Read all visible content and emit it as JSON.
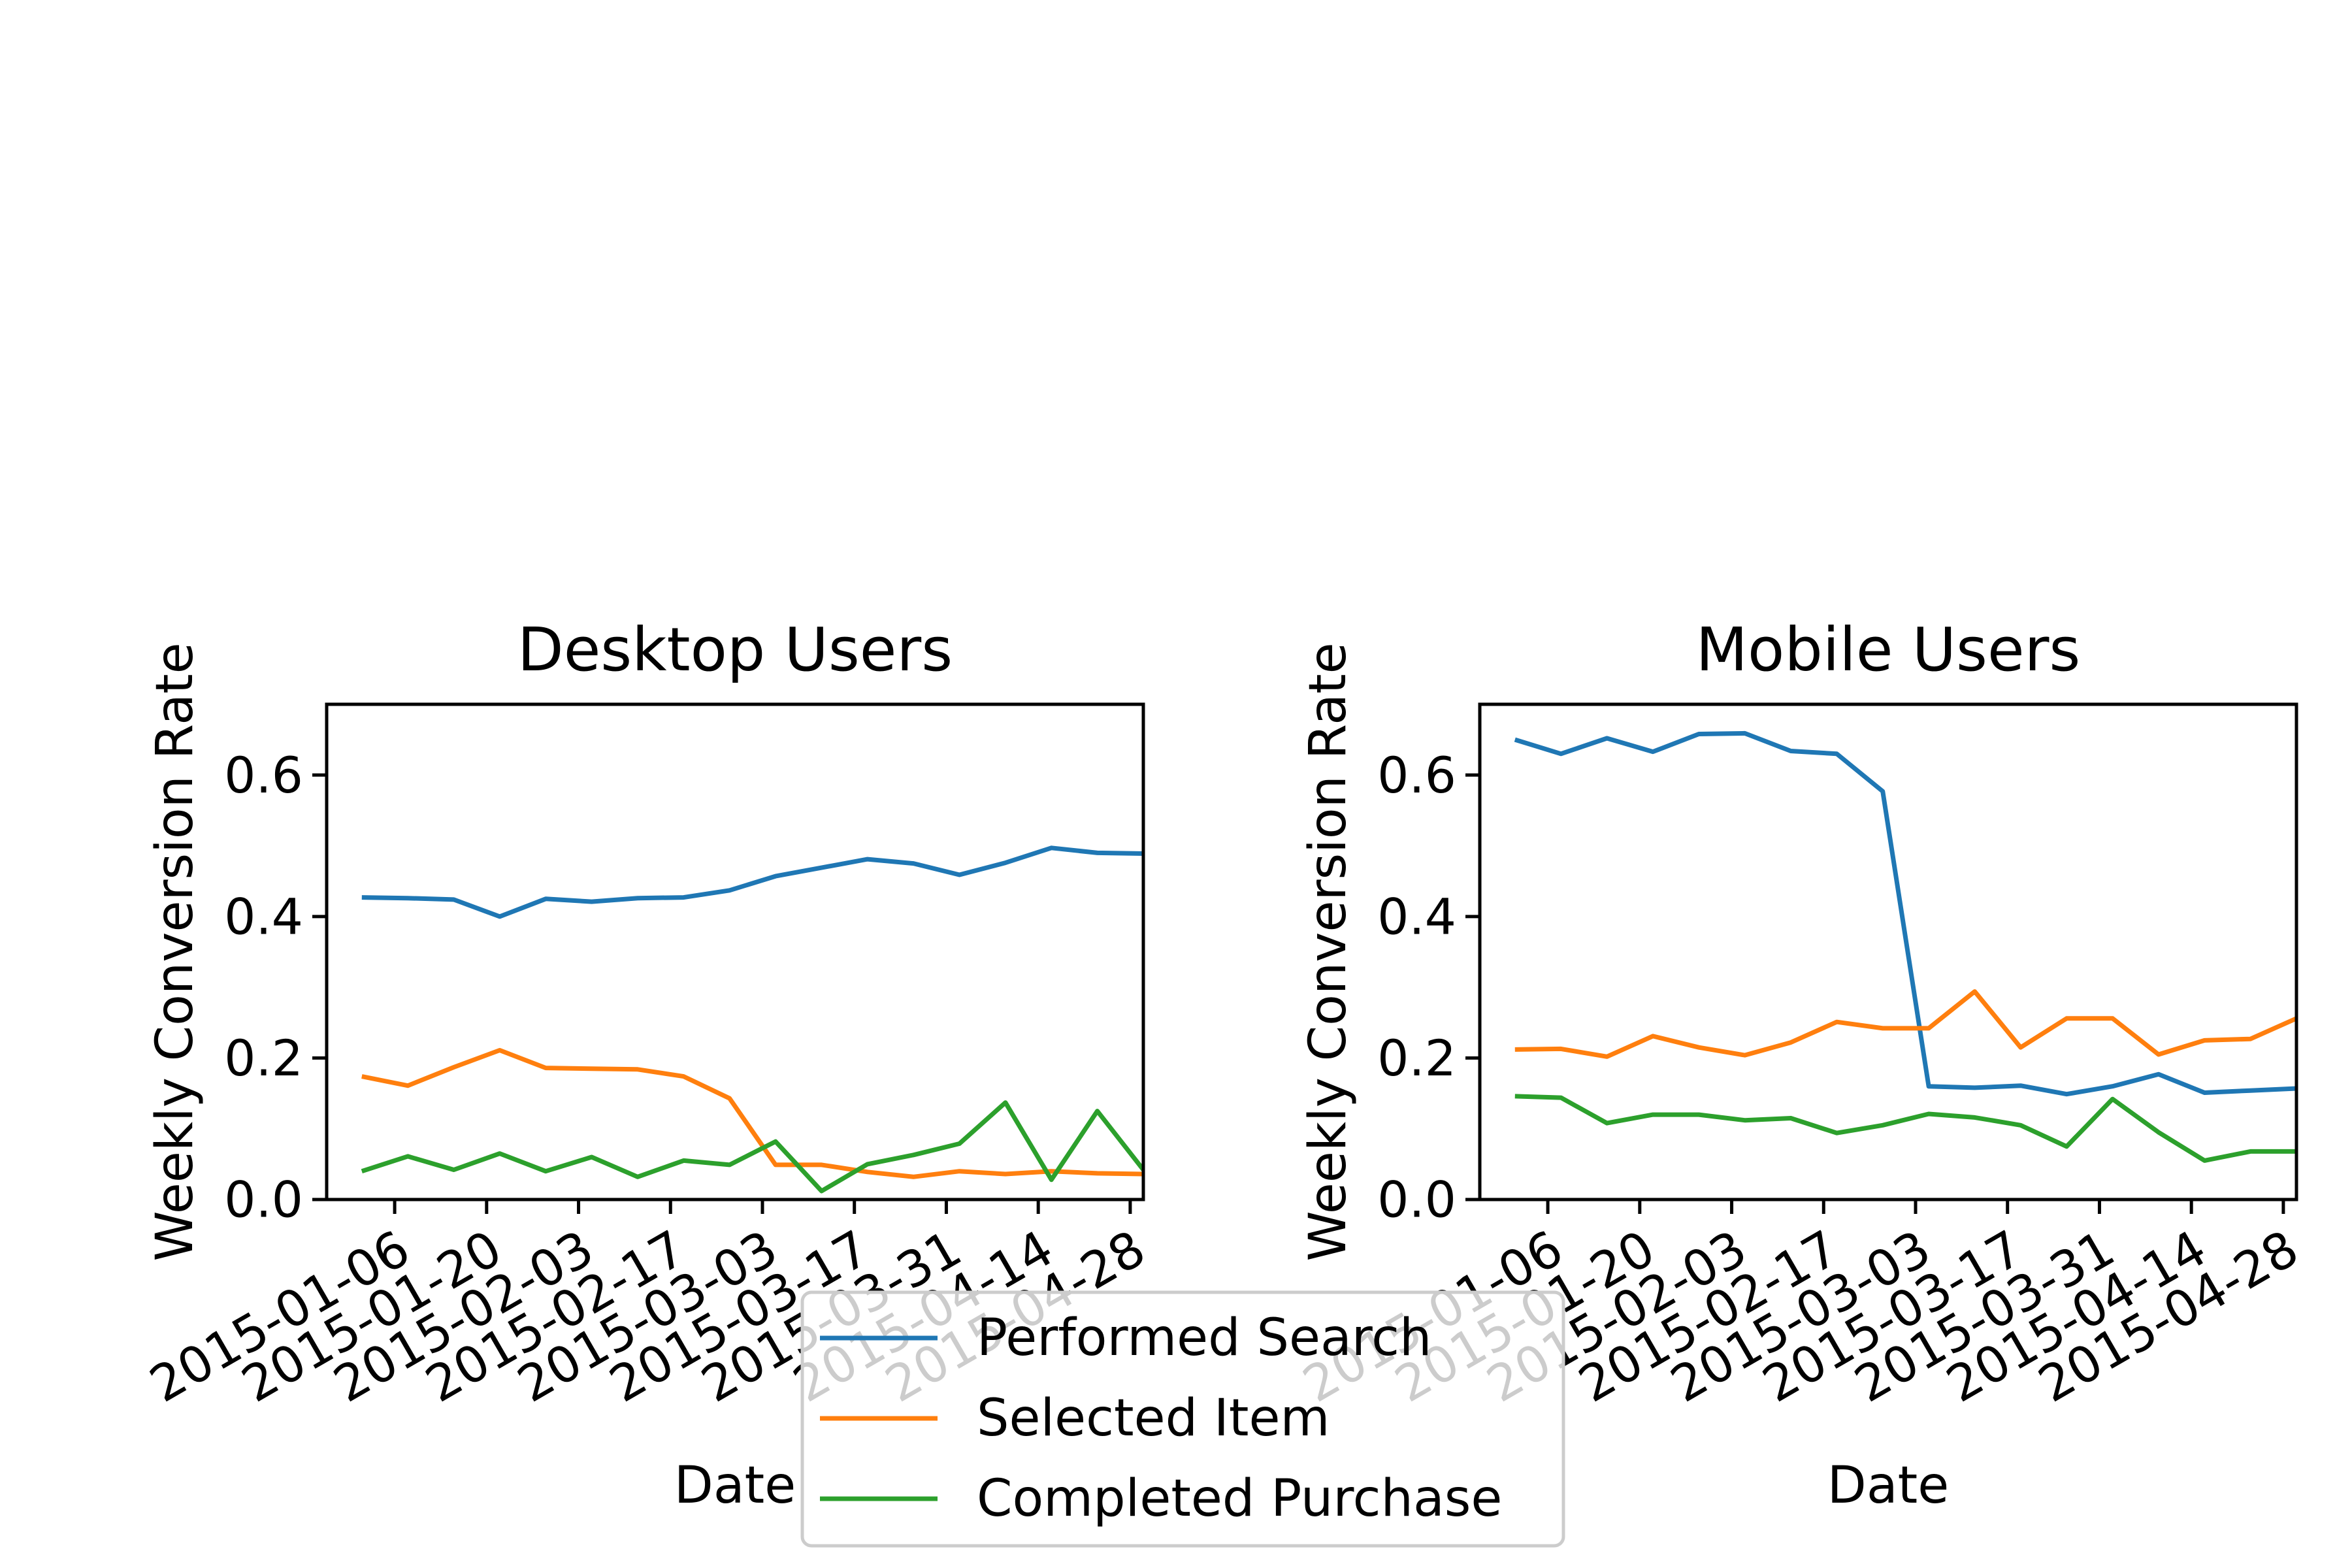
{
  "chart_data": [
    {
      "type": "line",
      "title": "Desktop Users",
      "xlabel": "Date",
      "ylabel": "Weekly Conversion Rate",
      "ylim": [
        0.0,
        0.7
      ],
      "yticks": [
        "0.0",
        "0.2",
        "0.4",
        "0.6"
      ],
      "x": [
        "2015-01-01",
        "2015-01-08",
        "2015-01-15",
        "2015-01-22",
        "2015-01-29",
        "2015-02-05",
        "2015-02-12",
        "2015-02-19",
        "2015-02-26",
        "2015-03-05",
        "2015-03-12",
        "2015-03-19",
        "2015-03-26",
        "2015-04-02",
        "2015-04-09",
        "2015-04-16",
        "2015-04-23",
        "2015-04-30"
      ],
      "xticks": [
        "2015-01-06",
        "2015-01-20",
        "2015-02-03",
        "2015-02-17",
        "2015-03-03",
        "2015-03-17",
        "2015-03-31",
        "2015-04-14",
        "2015-04-28"
      ],
      "series": [
        {
          "name": "Performed Search",
          "color": "#1f77b4",
          "values": [
            0.427,
            0.426,
            0.424,
            0.4,
            0.425,
            0.421,
            0.426,
            0.427,
            0.437,
            0.457,
            0.469,
            0.481,
            0.475,
            0.459,
            0.476,
            0.497,
            0.49,
            0.489
          ]
        },
        {
          "name": "Selected Item",
          "color": "#ff7f0e",
          "values": [
            0.174,
            0.161,
            0.187,
            0.211,
            0.186,
            0.185,
            0.184,
            0.174,
            0.143,
            0.049,
            0.049,
            0.039,
            0.032,
            0.04,
            0.036,
            0.04,
            0.037,
            0.036
          ]
        },
        {
          "name": "Completed Purchase",
          "color": "#2ca02c",
          "values": [
            0.04,
            0.061,
            0.042,
            0.065,
            0.04,
            0.06,
            0.032,
            0.055,
            0.049,
            0.082,
            0.012,
            0.05,
            0.063,
            0.079,
            0.137,
            0.028,
            0.125,
            0.042
          ]
        }
      ]
    },
    {
      "type": "line",
      "title": "Mobile Users",
      "xlabel": "Date",
      "ylabel": "Weekly Conversion Rate",
      "ylim": [
        0.0,
        0.7
      ],
      "yticks": [
        "0.0",
        "0.2",
        "0.4",
        "0.6"
      ],
      "x": [
        "2015-01-01",
        "2015-01-08",
        "2015-01-15",
        "2015-01-22",
        "2015-01-29",
        "2015-02-05",
        "2015-02-12",
        "2015-02-19",
        "2015-02-26",
        "2015-03-05",
        "2015-03-12",
        "2015-03-19",
        "2015-03-26",
        "2015-04-02",
        "2015-04-09",
        "2015-04-16",
        "2015-04-23",
        "2015-04-30"
      ],
      "xticks": [
        "2015-01-06",
        "2015-01-20",
        "2015-02-03",
        "2015-02-17",
        "2015-03-03",
        "2015-03-17",
        "2015-03-31",
        "2015-04-14",
        "2015-04-28"
      ],
      "series": [
        {
          "name": "Performed Search",
          "color": "#1f77b4",
          "values": [
            0.65,
            0.63,
            0.652,
            0.633,
            0.658,
            0.659,
            0.634,
            0.63,
            0.577,
            0.16,
            0.158,
            0.161,
            0.149,
            0.16,
            0.177,
            0.151,
            0.154,
            0.157
          ]
        },
        {
          "name": "Selected Item",
          "color": "#ff7f0e",
          "values": [
            0.212,
            0.213,
            0.202,
            0.231,
            0.215,
            0.204,
            0.222,
            0.251,
            0.242,
            0.242,
            0.294,
            0.215,
            0.256,
            0.256,
            0.205,
            0.225,
            0.227,
            0.256
          ]
        },
        {
          "name": "Completed Purchase",
          "color": "#2ca02c",
          "values": [
            0.146,
            0.144,
            0.108,
            0.12,
            0.12,
            0.112,
            0.115,
            0.094,
            0.105,
            0.121,
            0.116,
            0.105,
            0.075,
            0.142,
            0.095,
            0.055,
            0.068,
            0.068
          ]
        }
      ]
    }
  ],
  "legend": {
    "placement": "bottom-center",
    "items": [
      {
        "label": "Performed Search",
        "color": "#1f77b4"
      },
      {
        "label": "Selected Item",
        "color": "#ff7f0e"
      },
      {
        "label": "Completed Purchase",
        "color": "#2ca02c"
      }
    ]
  }
}
